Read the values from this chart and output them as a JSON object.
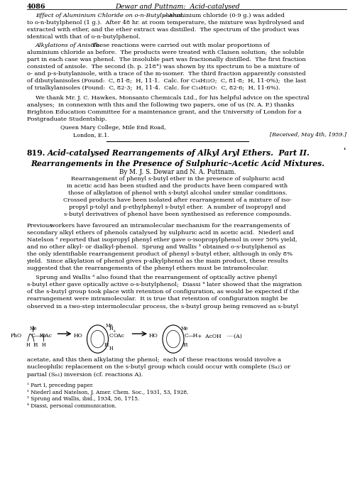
{
  "background": "#ffffff",
  "lm": 0.075,
  "rm": 0.975,
  "fs_body": 6.05,
  "fs_header": 6.8,
  "fs_title": 7.8,
  "fs_fn": 5.3,
  "lh": 0.0148,
  "page_number": "4086",
  "header_title": "Dewar and Puttnam:  Acid-catalysed",
  "footnotes": [
    "¹ Part I, preceding paper.",
    "² Niederl and Natelson, J. Amer. Chem. Soc., 1931, 53, 1928.",
    "³ Sprung and Wallis, ibid., 1934, 56, 1715.",
    "⁴ Diassi, personal communication."
  ]
}
